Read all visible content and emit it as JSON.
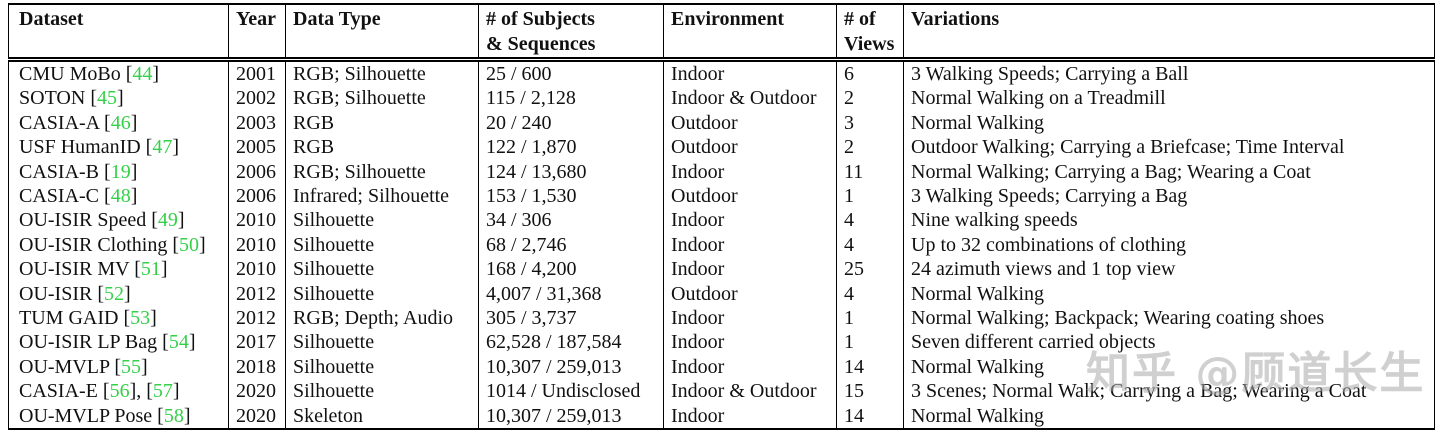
{
  "colors": {
    "citation_green": "#35d04a",
    "watermark_gray": "#ababab",
    "border_black": "#000000"
  },
  "watermark": {
    "text": "知乎 @顾道长生"
  },
  "table": {
    "columns": [
      "Dataset",
      "Year",
      "Data Type",
      "# of Subjects\n& Sequences",
      "Environment",
      "# of\nViews",
      "Variations"
    ],
    "rows": [
      {
        "dataset": "CMU MoBo",
        "refs": [
          "44"
        ],
        "year": "2001",
        "data_type": "RGB; Silhouette",
        "subjects_sequences": "25 / 600",
        "environment": "Indoor",
        "views": "6",
        "variations": "3 Walking Speeds; Carrying a Ball"
      },
      {
        "dataset": "SOTON",
        "refs": [
          "45"
        ],
        "year": "2002",
        "data_type": "RGB; Silhouette",
        "subjects_sequences": "115 / 2,128",
        "environment": "Indoor & Outdoor",
        "views": "2",
        "variations": "Normal Walking on a Treadmill"
      },
      {
        "dataset": "CASIA-A",
        "refs": [
          "46"
        ],
        "year": "2003",
        "data_type": "RGB",
        "subjects_sequences": "20 / 240",
        "environment": "Outdoor",
        "views": "3",
        "variations": "Normal Walking"
      },
      {
        "dataset": "USF HumanID",
        "refs": [
          "47"
        ],
        "year": "2005",
        "data_type": "RGB",
        "subjects_sequences": "122 / 1,870",
        "environment": "Outdoor",
        "views": "2",
        "variations": "Outdoor Walking; Carrying a Briefcase; Time Interval"
      },
      {
        "dataset": "CASIA-B",
        "refs": [
          "19"
        ],
        "year": "2006",
        "data_type": "RGB; Silhouette",
        "subjects_sequences": "124 / 13,680",
        "environment": "Indoor",
        "views": "11",
        "variations": "Normal Walking; Carrying a Bag; Wearing a Coat"
      },
      {
        "dataset": "CASIA-C",
        "refs": [
          "48"
        ],
        "year": "2006",
        "data_type": "Infrared; Silhouette",
        "subjects_sequences": "153 / 1,530",
        "environment": "Outdoor",
        "views": "1",
        "variations": "3 Walking Speeds; Carrying a Bag"
      },
      {
        "dataset": "OU-ISIR Speed",
        "refs": [
          "49"
        ],
        "year": "2010",
        "data_type": "Silhouette",
        "subjects_sequences": "34 / 306",
        "environment": "Indoor",
        "views": "4",
        "variations": "Nine walking speeds"
      },
      {
        "dataset": "OU-ISIR Clothing",
        "refs": [
          "50"
        ],
        "year": "2010",
        "data_type": "Silhouette",
        "subjects_sequences": "68 / 2,746",
        "environment": "Indoor",
        "views": "4",
        "variations": "Up to 32 combinations of clothing"
      },
      {
        "dataset": "OU-ISIR MV",
        "refs": [
          "51"
        ],
        "year": "2010",
        "data_type": "Silhouette",
        "subjects_sequences": "168 / 4,200",
        "environment": "Indoor",
        "views": "25",
        "variations": "24 azimuth views and 1 top view"
      },
      {
        "dataset": "OU-ISIR",
        "refs": [
          "52"
        ],
        "year": "2012",
        "data_type": "Silhouette",
        "subjects_sequences": "4,007 / 31,368",
        "environment": "Outdoor",
        "views": "4",
        "variations": "Normal Walking"
      },
      {
        "dataset": "TUM GAID",
        "refs": [
          "53"
        ],
        "year": "2012",
        "data_type": "RGB; Depth; Audio",
        "subjects_sequences": "305 / 3,737",
        "environment": "Indoor",
        "views": "1",
        "variations": "Normal Walking; Backpack; Wearing coating shoes"
      },
      {
        "dataset": "OU-ISIR LP Bag",
        "refs": [
          "54"
        ],
        "year": "2017",
        "data_type": "Silhouette",
        "subjects_sequences": "62,528 / 187,584",
        "environment": "Indoor",
        "views": "1",
        "variations": "Seven different carried objects"
      },
      {
        "dataset": "OU-MVLP",
        "refs": [
          "55"
        ],
        "year": "2018",
        "data_type": "Silhouette",
        "subjects_sequences": "10,307 / 259,013",
        "environment": "Indoor",
        "views": "14",
        "variations": "Normal Walking"
      },
      {
        "dataset": "CASIA-E",
        "refs": [
          "56",
          "57"
        ],
        "year": "2020",
        "data_type": "Silhouette",
        "subjects_sequences": "1014 / Undisclosed",
        "environment": "Indoor & Outdoor",
        "views": "15",
        "variations": "3 Scenes; Normal Walk; Carrying a Bag; Wearing a Coat"
      },
      {
        "dataset": "OU-MVLP Pose",
        "refs": [
          "58"
        ],
        "year": "2020",
        "data_type": "Skeleton",
        "subjects_sequences": "10,307 / 259,013",
        "environment": "Indoor",
        "views": "14",
        "variations": "Normal Walking"
      }
    ]
  }
}
